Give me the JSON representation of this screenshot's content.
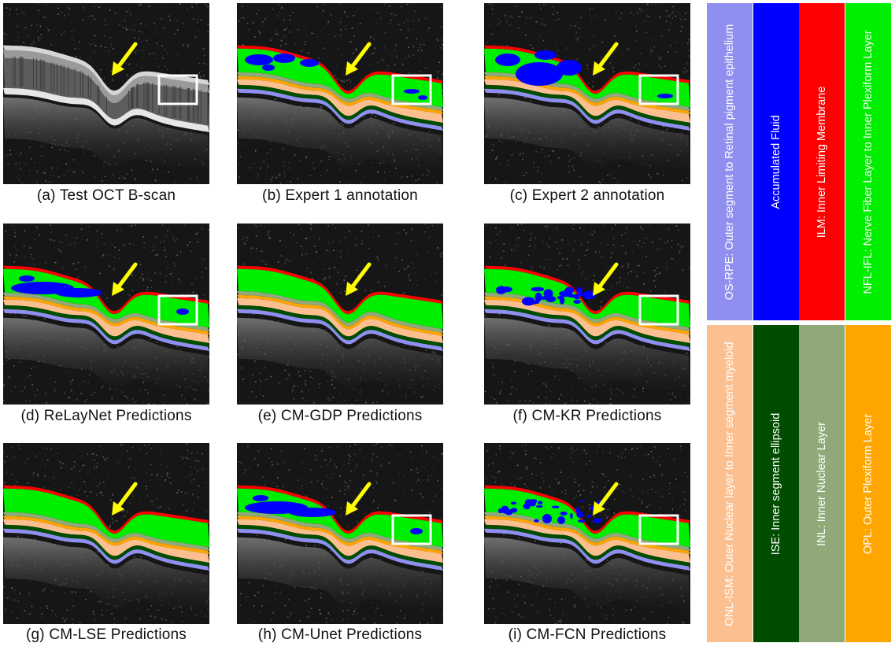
{
  "panels": [
    {
      "id": "a",
      "caption": "(a) Test OCT B-scan",
      "style": "raw",
      "fluid": "none",
      "box": true
    },
    {
      "id": "b",
      "caption": "(b) Expert 1 annotation",
      "style": "seg",
      "fluid": "blobs",
      "box": true
    },
    {
      "id": "c",
      "caption": "(c) Expert 2 annotation",
      "style": "seg",
      "fluid": "big",
      "box": true
    },
    {
      "id": "d",
      "caption": "(d) ReLayNet Predictions",
      "style": "seg",
      "fluid": "band",
      "box": true
    },
    {
      "id": "e",
      "caption": "(e) CM-GDP Predictions",
      "style": "seg-green",
      "fluid": "none",
      "box": false
    },
    {
      "id": "f",
      "caption": "(f) CM-KR Predictions",
      "style": "seg",
      "fluid": "streaks",
      "box": true
    },
    {
      "id": "g",
      "caption": "(g) CM-LSE Predictions",
      "style": "seg",
      "fluid": "none",
      "box": false
    },
    {
      "id": "h",
      "caption": "(h) CM-Unet Predictions",
      "style": "seg",
      "fluid": "band",
      "box": true
    },
    {
      "id": "i",
      "caption": "(i) CM-FCN Predictions",
      "style": "seg-noisy",
      "fluid": "speckle",
      "box": true
    }
  ],
  "legend": [
    {
      "label": "OS-RPE: Outer segment to Retinal pigment epithelium",
      "color": "#8f8ff0",
      "text_color": "#ffffff"
    },
    {
      "label": "Accumulated Fluid",
      "color": "#0000ff",
      "text_color": "#ffffff"
    },
    {
      "label": "ILM: Inner Limiting Membrane",
      "color": "#ff0000",
      "text_color": "#ffffff"
    },
    {
      "label": "NFL-IFL: Nerve Fiber Layer to Inner Plexiform Layer",
      "color": "#00ee00",
      "text_color": "#ffffff"
    },
    {
      "label": "ONL-ISM: Outer Nuclear layer to Inner segment myeloid",
      "color": "#fcc090",
      "text_color": "#ffffff"
    },
    {
      "label": "ISE: Inner segment ellipsoid",
      "color": "#004d00",
      "text_color": "#ffffff"
    },
    {
      "label": "INL: Inner Nuclear Layer",
      "color": "#8faa78",
      "text_color": "#ffffff"
    },
    {
      "label": "OPL: Outer Plexiform Layer",
      "color": "#ffa500",
      "text_color": "#ffffff"
    }
  ],
  "colors": {
    "arrow": "#ffff00",
    "box": "#ffffff",
    "background": "#161616"
  },
  "icons": [
    "yellow-arrow-icon",
    "roi-box-icon"
  ]
}
